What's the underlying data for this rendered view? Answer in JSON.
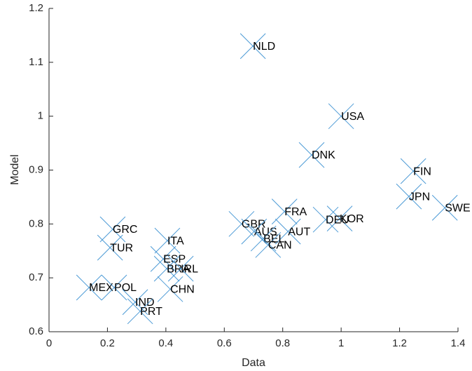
{
  "chart_data": {
    "type": "scatter",
    "xlabel": "Data",
    "ylabel": "Model",
    "xlim": [
      0,
      1.4
    ],
    "xticks": [
      0,
      0.2,
      0.4,
      0.6,
      0.8,
      1,
      1.2,
      1.4
    ],
    "ylim": [
      0.6,
      1.2
    ],
    "yticks": [
      0.6,
      0.7,
      0.8,
      0.9,
      1,
      1.1,
      1.2
    ],
    "color": "#4d9bd6",
    "marker": "x",
    "labels": [
      "NLD",
      "USA",
      "DNK",
      "FIN",
      "JPN",
      "SWE",
      "FRA",
      "KOR",
      "DEU",
      "GBR",
      "AUS",
      "AUT",
      "BEL",
      "CAN",
      "GRC",
      "TUR",
      "ITA",
      "ESP",
      "BRA",
      "IRL",
      "CHN",
      "MEX",
      "POL",
      "IND",
      "PRT"
    ],
    "x": [
      0.698,
      1.0,
      0.899,
      1.247,
      1.232,
      1.355,
      0.806,
      0.995,
      0.947,
      0.659,
      0.702,
      0.818,
      0.734,
      0.75,
      0.218,
      0.209,
      0.405,
      0.391,
      0.403,
      0.451,
      0.415,
      0.137,
      0.223,
      0.295,
      0.312
    ],
    "values": [
      1.13,
      1.0,
      0.928,
      0.898,
      0.851,
      0.83,
      0.823,
      0.81,
      0.808,
      0.8,
      0.786,
      0.786,
      0.773,
      0.761,
      0.79,
      0.756,
      0.769,
      0.735,
      0.717,
      0.717,
      0.679,
      0.682,
      0.682,
      0.655,
      0.638
    ]
  }
}
